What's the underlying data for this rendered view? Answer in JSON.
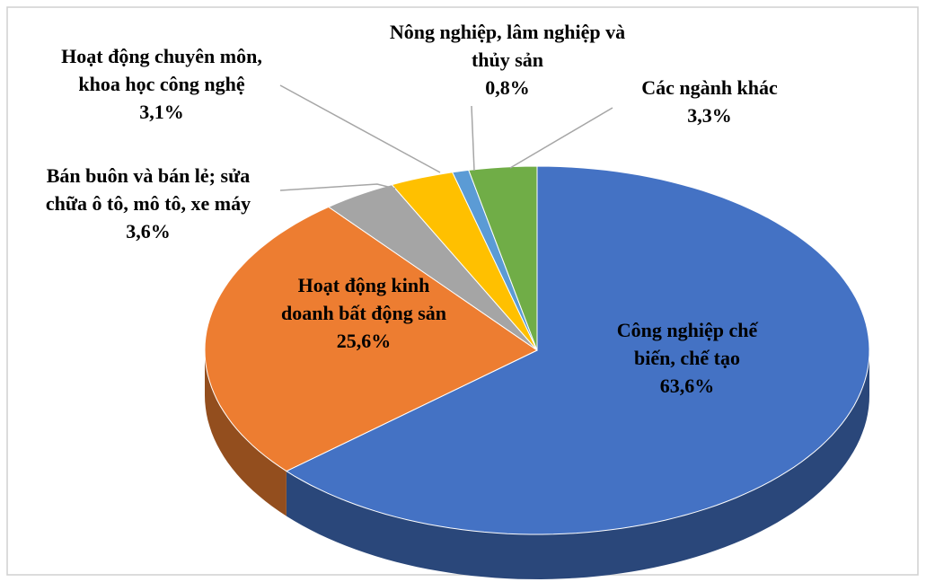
{
  "chart_data": {
    "type": "pie",
    "categories": [
      "Công nghiệp chế biến, chế tạo",
      "Hoạt động kinh doanh bất động sản",
      "Bán buôn và bán lẻ; sửa chữa ô tô, mô tô, xe máy",
      "Hoạt động chuyên môn, khoa học công nghệ",
      "Nông nghiệp, lâm nghiệp và thủy sản",
      "Các ngành khác"
    ],
    "values": [
      63.6,
      25.6,
      3.6,
      3.1,
      0.8,
      3.3
    ],
    "value_labels": [
      "63,6%",
      "25,6%",
      "3,6%",
      "3,1%",
      "0,8%",
      "3,3%"
    ],
    "colors": [
      "#4472c4",
      "#ed7d31",
      "#a5a5a5",
      "#ffc000",
      "#5b9bd5",
      "#70ad47"
    ]
  }
}
